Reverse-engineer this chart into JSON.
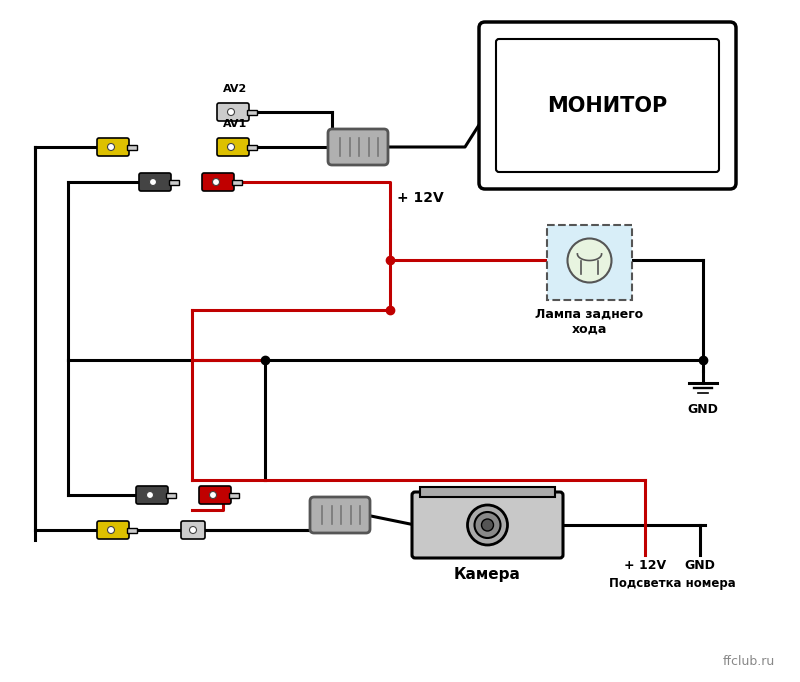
{
  "bg_color": "#ffffff",
  "fig_width": 8.0,
  "fig_height": 6.82,
  "monitor_label": "МОНИТОР",
  "lamp_label": "Лампа заднего\nхода",
  "gnd_label": "GND",
  "camera_label": "Камера",
  "backlight_label": "Подсветка номера",
  "plus12v_label1": "+ 12V",
  "plus12v_label2": "+ 12V",
  "av1_label": "AV1",
  "av2_label": "AV2",
  "watermark": "ffclub.ru",
  "black": "#000000",
  "red": "#c00000",
  "yellow": "#ddc000",
  "dark_gray": "#444444",
  "mid_gray": "#888888",
  "light_gray": "#cccccc",
  "lamp_fill": "#d8eef8",
  "lamp_border": "#555555"
}
